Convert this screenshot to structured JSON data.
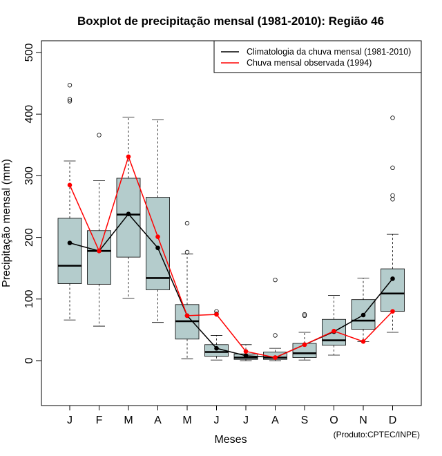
{
  "chart_data": {
    "type": "boxplot",
    "title": "Boxplot de precipitação mensal (1981-2010): Região 46",
    "xlabel": "Meses",
    "ylabel": "Precipitação mensal (mm)",
    "ylim": [
      -70,
      515
    ],
    "yticks": [
      0,
      100,
      200,
      300,
      400,
      500
    ],
    "categories": [
      "J",
      "F",
      "M",
      "A",
      "M",
      "J",
      "J",
      "A",
      "S",
      "O",
      "N",
      "D"
    ],
    "boxes": [
      {
        "whisker_low": 66,
        "q1": 125,
        "median": 154,
        "q3": 231,
        "whisker_high": 324,
        "outliers": [
          421,
          424,
          447
        ]
      },
      {
        "whisker_low": 56,
        "q1": 124,
        "median": 178,
        "q3": 211,
        "whisker_high": 292,
        "outliers": [
          366
        ]
      },
      {
        "whisker_low": 101,
        "q1": 168,
        "median": 237,
        "q3": 296,
        "whisker_high": 395,
        "outliers": []
      },
      {
        "whisker_low": 62,
        "q1": 115,
        "median": 134,
        "q3": 265,
        "whisker_high": 391,
        "outliers": []
      },
      {
        "whisker_low": 3,
        "q1": 35,
        "median": 64,
        "q3": 91,
        "whisker_high": 173,
        "outliers": [
          176,
          223
        ]
      },
      {
        "whisker_low": 1,
        "q1": 7,
        "median": 14,
        "q3": 26,
        "whisker_high": 41,
        "outliers": [
          76,
          80
        ]
      },
      {
        "whisker_low": 0,
        "q1": 2,
        "median": 5,
        "q3": 11,
        "whisker_high": 26,
        "outliers": []
      },
      {
        "whisker_low": 0,
        "q1": 2,
        "median": 5,
        "q3": 14,
        "whisker_high": 20,
        "outliers": [
          41,
          131
        ]
      },
      {
        "whisker_low": 1,
        "q1": 5,
        "median": 12,
        "q3": 28,
        "whisker_high": 46,
        "outliers": [
          73,
          75
        ]
      },
      {
        "whisker_low": 9,
        "q1": 25,
        "median": 33,
        "q3": 67,
        "whisker_high": 106,
        "outliers": []
      },
      {
        "whisker_low": 31,
        "q1": 51,
        "median": 65,
        "q3": 99,
        "whisker_high": 134,
        "outliers": []
      },
      {
        "whisker_low": 46,
        "q1": 80,
        "median": 109,
        "q3": 149,
        "whisker_high": 205,
        "outliers": [
          262,
          268,
          313,
          394
        ]
      }
    ],
    "series": [
      {
        "name": "Climatologia da chuva mensal (1981-2010)",
        "color": "#000000",
        "values": [
          191,
          178,
          238,
          183,
          73,
          20,
          8,
          5,
          26,
          47,
          74,
          133
        ]
      },
      {
        "name": "Chuva mensal observada (1994)",
        "color": "#ff0000",
        "values": [
          285,
          178,
          331,
          201,
          73,
          75,
          15,
          5,
          26,
          48,
          31,
          80
        ]
      }
    ],
    "box_fill": "#b4cccc",
    "legend_position": "top-right",
    "grid": false
  },
  "credit": "(Produto:CPTEC/INPE)"
}
